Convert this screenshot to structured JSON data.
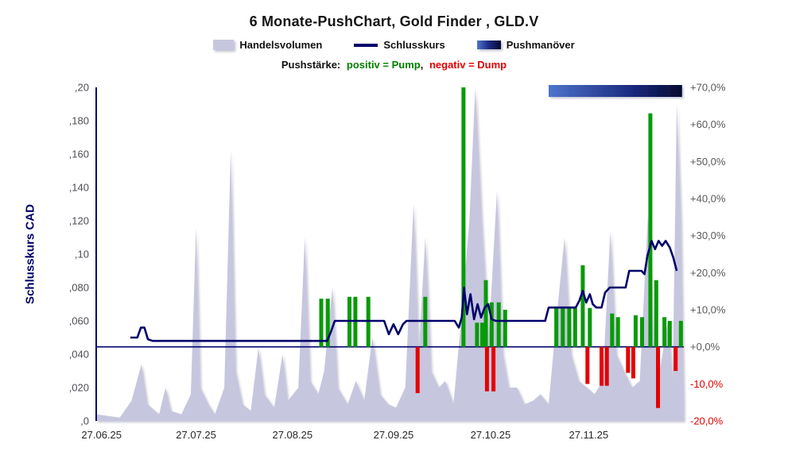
{
  "chart": {
    "title": "6 Monate-PushChart, Gold Finder , GLD.V",
    "legend": [
      {
        "label": "Handelsvolumen"
      },
      {
        "label": "Schlusskurs"
      },
      {
        "label": "Pushmanöver"
      }
    ],
    "subtitle": {
      "prefix": "Pushstärke:",
      "pump": "positiv = Pump",
      "comma": ",",
      "dump": "negativ = Dump"
    },
    "ylabel_left": "Schlusskurs CAD"
  },
  "chart_data": {
    "type": "line",
    "title": "6 Monate-PushChart, Gold Finder , GLD.V",
    "ylabel_left": "Schlusskurs CAD",
    "ylim_left": [
      0,
      0.2
    ],
    "ylim_right_percent": [
      -20,
      70
    ],
    "left_tick_labels": [
      ",20",
      ",180",
      ",160",
      ",140",
      ",120",
      ",10",
      ",080",
      ",060",
      ",040",
      ",020",
      ",0"
    ],
    "right_tick_labels": [
      "+70,0%",
      "+60,0%",
      "+50,0%",
      "+40,0%",
      "+30,0%",
      "+20,0%",
      "+10,0%",
      "+0,0%",
      "-10,0%",
      "-20,0%"
    ],
    "x_axis": {
      "tick_labels": [
        "27.06.25",
        "27.07.25",
        "27.08.25",
        "27.09.25",
        "27.10.25",
        "27.11.25"
      ],
      "tick_positions": [
        0.009,
        0.17,
        0.334,
        0.506,
        0.671,
        0.838
      ]
    },
    "series": [
      {
        "name": "Handelsvolumen",
        "type": "area",
        "unit": "relative-volume 0..1",
        "points": [
          [
            0.0,
            0.02
          ],
          [
            0.04,
            0.01
          ],
          [
            0.06,
            0.06
          ],
          [
            0.077,
            0.17
          ],
          [
            0.087,
            0.05
          ],
          [
            0.107,
            0.02
          ],
          [
            0.118,
            0.1
          ],
          [
            0.127,
            0.03
          ],
          [
            0.145,
            0.02
          ],
          [
            0.161,
            0.08
          ],
          [
            0.17,
            0.58
          ],
          [
            0.177,
            0.1
          ],
          [
            0.191,
            0.05
          ],
          [
            0.202,
            0.02
          ],
          [
            0.218,
            0.1
          ],
          [
            0.229,
            0.81
          ],
          [
            0.237,
            0.15
          ],
          [
            0.249,
            0.05
          ],
          [
            0.263,
            0.03
          ],
          [
            0.276,
            0.22
          ],
          [
            0.286,
            0.08
          ],
          [
            0.303,
            0.04
          ],
          [
            0.317,
            0.2
          ],
          [
            0.326,
            0.06
          ],
          [
            0.344,
            0.1
          ],
          [
            0.355,
            0.55
          ],
          [
            0.364,
            0.12
          ],
          [
            0.378,
            0.08
          ],
          [
            0.388,
            0.15
          ],
          [
            0.402,
            0.4
          ],
          [
            0.411,
            0.1
          ],
          [
            0.428,
            0.05
          ],
          [
            0.442,
            0.12
          ],
          [
            0.456,
            0.06
          ],
          [
            0.47,
            0.25
          ],
          [
            0.483,
            0.08
          ],
          [
            0.497,
            0.05
          ],
          [
            0.51,
            0.04
          ],
          [
            0.526,
            0.1
          ],
          [
            0.54,
            0.65
          ],
          [
            0.549,
            0.2
          ],
          [
            0.56,
            0.55
          ],
          [
            0.57,
            0.15
          ],
          [
            0.583,
            0.1
          ],
          [
            0.594,
            0.12
          ],
          [
            0.608,
            0.05
          ],
          [
            0.621,
            0.3
          ],
          [
            0.635,
            0.6
          ],
          [
            0.645,
            1.0
          ],
          [
            0.656,
            0.6
          ],
          [
            0.668,
            0.25
          ],
          [
            0.682,
            0.69
          ],
          [
            0.692,
            0.2
          ],
          [
            0.702,
            0.1
          ],
          [
            0.716,
            0.1
          ],
          [
            0.729,
            0.05
          ],
          [
            0.743,
            0.06
          ],
          [
            0.756,
            0.08
          ],
          [
            0.77,
            0.05
          ],
          [
            0.783,
            0.3
          ],
          [
            0.797,
            0.55
          ],
          [
            0.808,
            0.2
          ],
          [
            0.821,
            0.12
          ],
          [
            0.835,
            0.1
          ],
          [
            0.848,
            0.08
          ],
          [
            0.862,
            0.12
          ],
          [
            0.875,
            0.57
          ],
          [
            0.885,
            0.2
          ],
          [
            0.898,
            0.15
          ],
          [
            0.912,
            0.1
          ],
          [
            0.925,
            0.12
          ],
          [
            0.939,
            0.62
          ],
          [
            0.948,
            0.25
          ],
          [
            0.959,
            0.15
          ],
          [
            0.973,
            0.3
          ],
          [
            0.981,
            0.12
          ],
          [
            0.988,
            0.95
          ],
          [
            0.995,
            0.6
          ],
          [
            1.0,
            0.05
          ]
        ]
      },
      {
        "name": "Schlusskurs",
        "type": "line",
        "unit": "CAD",
        "points": [
          [
            0.058,
            0.05
          ],
          [
            0.07,
            0.05
          ],
          [
            0.076,
            0.056
          ],
          [
            0.082,
            0.056
          ],
          [
            0.088,
            0.049
          ],
          [
            0.096,
            0.048
          ],
          [
            0.2,
            0.048
          ],
          [
            0.3,
            0.048
          ],
          [
            0.37,
            0.048
          ],
          [
            0.393,
            0.048
          ],
          [
            0.4,
            0.054
          ],
          [
            0.406,
            0.06
          ],
          [
            0.49,
            0.06
          ],
          [
            0.498,
            0.052
          ],
          [
            0.506,
            0.058
          ],
          [
            0.514,
            0.052
          ],
          [
            0.522,
            0.058
          ],
          [
            0.528,
            0.06
          ],
          [
            0.61,
            0.06
          ],
          [
            0.617,
            0.056
          ],
          [
            0.622,
            0.062
          ],
          [
            0.626,
            0.08
          ],
          [
            0.631,
            0.064
          ],
          [
            0.637,
            0.076
          ],
          [
            0.643,
            0.061
          ],
          [
            0.649,
            0.07
          ],
          [
            0.655,
            0.062
          ],
          [
            0.661,
            0.068
          ],
          [
            0.667,
            0.07
          ],
          [
            0.673,
            0.061
          ],
          [
            0.68,
            0.06
          ],
          [
            0.764,
            0.06
          ],
          [
            0.77,
            0.068
          ],
          [
            0.816,
            0.068
          ],
          [
            0.822,
            0.072
          ],
          [
            0.828,
            0.078
          ],
          [
            0.834,
            0.071
          ],
          [
            0.84,
            0.076
          ],
          [
            0.845,
            0.07
          ],
          [
            0.851,
            0.068
          ],
          [
            0.86,
            0.068
          ],
          [
            0.866,
            0.077
          ],
          [
            0.874,
            0.08
          ],
          [
            0.901,
            0.08
          ],
          [
            0.907,
            0.09
          ],
          [
            0.928,
            0.09
          ],
          [
            0.933,
            0.088
          ],
          [
            0.938,
            0.099
          ],
          [
            0.945,
            0.108
          ],
          [
            0.951,
            0.103
          ],
          [
            0.957,
            0.108
          ],
          [
            0.963,
            0.105
          ],
          [
            0.969,
            0.108
          ],
          [
            0.976,
            0.104
          ],
          [
            0.982,
            0.098
          ],
          [
            0.988,
            0.09
          ]
        ]
      },
      {
        "name": "Pushstärke",
        "type": "bar",
        "unit": "percent (right axis), positive=Pump green, negative=Dump red",
        "bars": [
          [
            0.383,
            13
          ],
          [
            0.394,
            13
          ],
          [
            0.431,
            13.5
          ],
          [
            0.441,
            13.5
          ],
          [
            0.463,
            13.5
          ],
          [
            0.547,
            -12.5
          ],
          [
            0.56,
            13.5
          ],
          [
            0.625,
            70
          ],
          [
            0.648,
            6.5
          ],
          [
            0.657,
            6.5
          ],
          [
            0.663,
            18
          ],
          [
            0.665,
            -12
          ],
          [
            0.673,
            12
          ],
          [
            0.676,
            -12
          ],
          [
            0.685,
            12
          ],
          [
            0.696,
            10
          ],
          [
            0.783,
            10.5
          ],
          [
            0.794,
            10.5
          ],
          [
            0.805,
            10.5
          ],
          [
            0.815,
            10.5
          ],
          [
            0.828,
            22
          ],
          [
            0.836,
            -10
          ],
          [
            0.84,
            10.5
          ],
          [
            0.86,
            -10.5
          ],
          [
            0.869,
            -10.5
          ],
          [
            0.878,
            9
          ],
          [
            0.888,
            8
          ],
          [
            0.905,
            -7
          ],
          [
            0.914,
            -8.5
          ],
          [
            0.918,
            8.5
          ],
          [
            0.929,
            8
          ],
          [
            0.943,
            63
          ],
          [
            0.953,
            18
          ],
          [
            0.956,
            -16.5
          ],
          [
            0.967,
            8
          ],
          [
            0.976,
            7
          ],
          [
            0.986,
            -6.5
          ],
          [
            0.995,
            7
          ]
        ]
      },
      {
        "name": "Pushmanöver",
        "type": "band",
        "x_range": [
          0.77,
          0.997
        ]
      }
    ],
    "colors": {
      "volume": "#c6c6df",
      "line": "#00006b",
      "pump": "#089a08",
      "dump": "#e60000",
      "pump_text": "#008000",
      "dump_text": "#e00000",
      "negative_tick": "#e00000",
      "push_band": [
        "#4f74cc",
        "#1a2a80",
        "#050a30"
      ]
    },
    "legend_position": "top-center",
    "grid": false
  }
}
